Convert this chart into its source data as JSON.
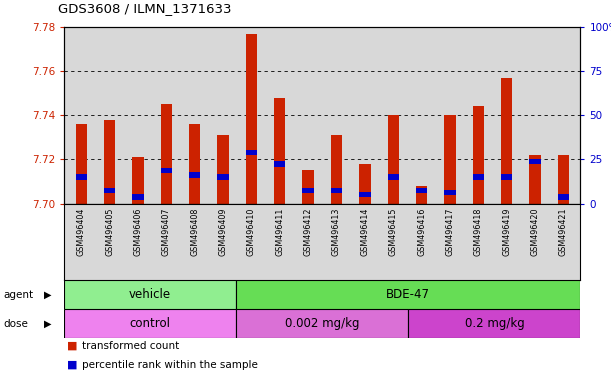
{
  "title": "GDS3608 / ILMN_1371633",
  "samples": [
    "GSM496404",
    "GSM496405",
    "GSM496406",
    "GSM496407",
    "GSM496408",
    "GSM496409",
    "GSM496410",
    "GSM496411",
    "GSM496412",
    "GSM496413",
    "GSM496414",
    "GSM496415",
    "GSM496416",
    "GSM496417",
    "GSM496418",
    "GSM496419",
    "GSM496420",
    "GSM496421"
  ],
  "red_values": [
    7.736,
    7.738,
    7.721,
    7.745,
    7.736,
    7.731,
    7.777,
    7.748,
    7.715,
    7.731,
    7.718,
    7.74,
    7.708,
    7.74,
    7.744,
    7.757,
    7.722,
    7.722
  ],
  "blue_values": [
    7.712,
    7.706,
    7.703,
    7.715,
    7.713,
    7.712,
    7.723,
    7.718,
    7.706,
    7.706,
    7.704,
    7.712,
    7.706,
    7.705,
    7.712,
    7.712,
    7.719,
    7.703
  ],
  "y_min": 7.7,
  "y_max": 7.78,
  "y_ticks": [
    7.7,
    7.72,
    7.74,
    7.76,
    7.78
  ],
  "right_y_ticks": [
    0,
    25,
    50,
    75,
    100
  ],
  "agent_groups": [
    {
      "label": "vehicle",
      "start": 0,
      "end": 5,
      "color": "#90ee90"
    },
    {
      "label": "BDE-47",
      "start": 6,
      "end": 17,
      "color": "#66dd55"
    }
  ],
  "dose_groups": [
    {
      "label": "control",
      "start": 0,
      "end": 5,
      "color": "#ee82ee"
    },
    {
      "label": "0.002 mg/kg",
      "start": 6,
      "end": 11,
      "color": "#da70d6"
    },
    {
      "label": "0.2 mg/kg",
      "start": 12,
      "end": 17,
      "color": "#cc44cc"
    }
  ],
  "bar_color": "#cc2200",
  "blue_color": "#0000cc",
  "bg_color": "#ffffff",
  "plot_bg_color": "#d8d8d8",
  "tick_label_color_left": "#cc2200",
  "tick_label_color_right": "#0000cc",
  "legend_red": "transformed count",
  "legend_blue": "percentile rank within the sample",
  "bar_width": 0.4
}
